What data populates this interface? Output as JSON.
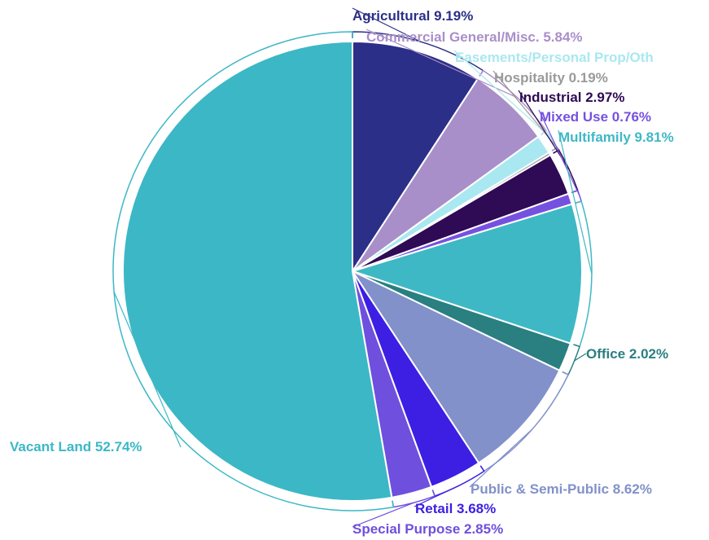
{
  "chart_data": {
    "type": "pie",
    "title": "",
    "slices": [
      {
        "label": "Agricultural",
        "value": 9.19,
        "text": "Agricultural 9.19%",
        "color": "#2b2f87"
      },
      {
        "label": "Commercial General/Misc.",
        "value": 5.84,
        "text": "Commercial General/Misc. 5.84%",
        "color": "#a98fc9"
      },
      {
        "label": "Easements/Personal Prop/Oth",
        "value": 1.33,
        "text": "Easements/Personal Prop/Oth",
        "color": "#a9e8f0"
      },
      {
        "label": "Hospitality",
        "value": 0.19,
        "text": "Hospitality 0.19%",
        "color": "#9a9a9a"
      },
      {
        "label": "Industrial",
        "value": 2.97,
        "text": "Industrial 2.97%",
        "color": "#2f0a55"
      },
      {
        "label": "Mixed Use",
        "value": 0.76,
        "text": "Mixed Use 0.76%",
        "color": "#7651e0"
      },
      {
        "label": "Multifamily",
        "value": 9.81,
        "text": "Multifamily 9.81%",
        "color": "#3fb8c5"
      },
      {
        "label": "Office",
        "value": 2.02,
        "text": "Office 2.02%",
        "color": "#2a7f80"
      },
      {
        "label": "Public & Semi-Public",
        "value": 8.62,
        "text": "Public & Semi-Public 8.62%",
        "color": "#8291c9"
      },
      {
        "label": "Retail",
        "value": 3.68,
        "text": "Retail 3.68%",
        "color": "#3c1fe3"
      },
      {
        "label": "Special Purpose",
        "value": 2.85,
        "text": "Special Purpose 2.85%",
        "color": "#6f4fdd"
      },
      {
        "label": "Vacant Land",
        "value": 52.74,
        "text": "Vacant Land 52.74%",
        "color": "#3cb7c6"
      }
    ]
  }
}
